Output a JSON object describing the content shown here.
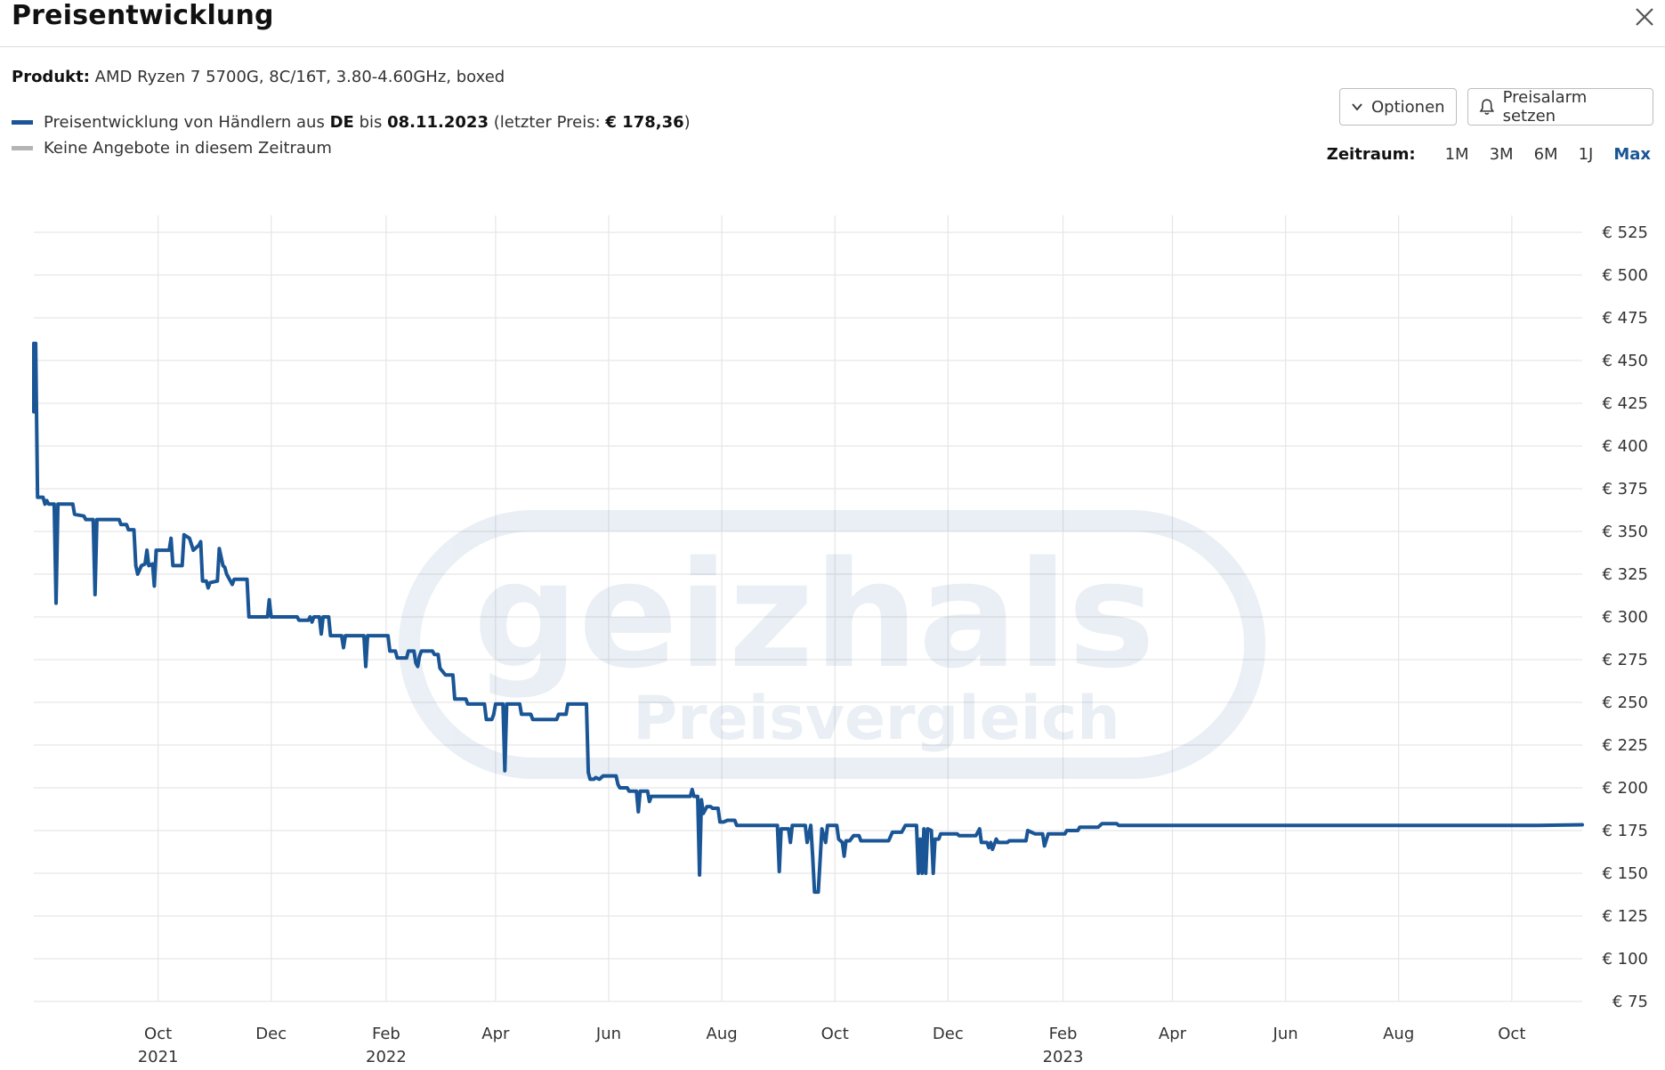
{
  "header": {
    "title": "Preisentwicklung"
  },
  "product": {
    "label": "Produkt:",
    "name": "AMD Ryzen 7 5700G, 8C/16T, 3.80-4.60GHz, boxed"
  },
  "legend": {
    "series_prefix": "Preisentwicklung von Händlern aus",
    "country": "DE",
    "bis": "bis",
    "date": "08.11.2023",
    "last_price_prefix": "(letzter Preis:",
    "last_price": "€ 178,36",
    "last_price_suffix": ")",
    "no_offers": "Keine Angebote in diesem Zeitraum",
    "series_color": "#1a5595",
    "no_offers_color": "#b4b4b4"
  },
  "buttons": {
    "options": "Optionen",
    "alarm": "Preisalarm setzen"
  },
  "zeitraum": {
    "label": "Zeitraum:",
    "options": [
      "1M",
      "3M",
      "6M",
      "1J",
      "Max"
    ],
    "active": "Max"
  },
  "watermark": {
    "main": "geizhals",
    "sub": "Preisvergleich"
  },
  "icons": {
    "close": "close-icon",
    "options": "chevron-down-icon",
    "alarm": "bell-icon"
  },
  "chart_data": {
    "type": "line",
    "xlabel": "",
    "ylabel": "",
    "ylim": [
      75,
      525
    ],
    "xlim": [
      "2021-07-26",
      "2023-11-08"
    ],
    "y_ticks": [
      75,
      100,
      125,
      150,
      175,
      200,
      225,
      250,
      275,
      300,
      325,
      350,
      375,
      400,
      425,
      450,
      475,
      500,
      525
    ],
    "y_tick_prefix": "€ ",
    "x_ticks": [
      {
        "date": "2021-10-01",
        "label": "Oct",
        "year": "2021"
      },
      {
        "date": "2021-12-01",
        "label": "Dec",
        "year": ""
      },
      {
        "date": "2022-02-01",
        "label": "Feb",
        "year": "2022"
      },
      {
        "date": "2022-04-01",
        "label": "Apr",
        "year": ""
      },
      {
        "date": "2022-06-01",
        "label": "Jun",
        "year": ""
      },
      {
        "date": "2022-08-01",
        "label": "Aug",
        "year": ""
      },
      {
        "date": "2022-10-01",
        "label": "Oct",
        "year": ""
      },
      {
        "date": "2022-12-01",
        "label": "Dec",
        "year": ""
      },
      {
        "date": "2023-02-01",
        "label": "Feb",
        "year": "2023"
      },
      {
        "date": "2023-04-01",
        "label": "Apr",
        "year": ""
      },
      {
        "date": "2023-06-01",
        "label": "Jun",
        "year": ""
      },
      {
        "date": "2023-08-01",
        "label": "Aug",
        "year": ""
      },
      {
        "date": "2023-10-01",
        "label": "Oct",
        "year": ""
      }
    ],
    "grid": true,
    "series": [
      {
        "color": "#1a5595",
        "points": [
          [
            "2021-07-26",
            460
          ],
          [
            "2021-07-26",
            420
          ],
          [
            "2021-07-27",
            460
          ],
          [
            "2021-07-28",
            370
          ],
          [
            "2021-07-31",
            370
          ],
          [
            "2021-08-01",
            366
          ],
          [
            "2021-08-02",
            368
          ],
          [
            "2021-08-03",
            366
          ],
          [
            "2021-08-06",
            366
          ],
          [
            "2021-08-07",
            308
          ],
          [
            "2021-08-08",
            366
          ],
          [
            "2021-08-16",
            366
          ],
          [
            "2021-08-17",
            360
          ],
          [
            "2021-08-22",
            359
          ],
          [
            "2021-08-23",
            357
          ],
          [
            "2021-08-27",
            357
          ],
          [
            "2021-08-28",
            313
          ],
          [
            "2021-08-29",
            357
          ],
          [
            "2021-09-10",
            357
          ],
          [
            "2021-09-11",
            354
          ],
          [
            "2021-09-14",
            354
          ],
          [
            "2021-09-15",
            351
          ],
          [
            "2021-09-18",
            351
          ],
          [
            "2021-09-19",
            330
          ],
          [
            "2021-09-20",
            325
          ],
          [
            "2021-09-22",
            330
          ],
          [
            "2021-09-24",
            331
          ],
          [
            "2021-09-25",
            339
          ],
          [
            "2021-09-26",
            330
          ],
          [
            "2021-09-28",
            331
          ],
          [
            "2021-09-29",
            318
          ],
          [
            "2021-09-30",
            339
          ],
          [
            "2021-10-07",
            339
          ],
          [
            "2021-10-08",
            346
          ],
          [
            "2021-10-09",
            330
          ],
          [
            "2021-10-14",
            330
          ],
          [
            "2021-10-15",
            348
          ],
          [
            "2021-10-18",
            346
          ],
          [
            "2021-10-20",
            339
          ],
          [
            "2021-10-23",
            342
          ],
          [
            "2021-10-24",
            344
          ],
          [
            "2021-10-25",
            321
          ],
          [
            "2021-10-27",
            321
          ],
          [
            "2021-10-28",
            317
          ],
          [
            "2021-10-29",
            320
          ],
          [
            "2021-11-02",
            321
          ],
          [
            "2021-11-03",
            340
          ],
          [
            "2021-11-05",
            330
          ],
          [
            "2021-11-06",
            329
          ],
          [
            "2021-11-07",
            325
          ],
          [
            "2021-11-09",
            321
          ],
          [
            "2021-11-10",
            319
          ],
          [
            "2021-11-11",
            322
          ],
          [
            "2021-11-18",
            322
          ],
          [
            "2021-11-19",
            300
          ],
          [
            "2021-11-29",
            300
          ],
          [
            "2021-11-30",
            310
          ],
          [
            "2021-12-01",
            300
          ],
          [
            "2021-12-15",
            300
          ],
          [
            "2021-12-16",
            298
          ],
          [
            "2021-12-21",
            298
          ],
          [
            "2021-12-22",
            300
          ],
          [
            "2021-12-23",
            297
          ],
          [
            "2021-12-24",
            300
          ],
          [
            "2021-12-27",
            300
          ],
          [
            "2021-12-28",
            290
          ],
          [
            "2021-12-29",
            300
          ],
          [
            "2022-01-01",
            300
          ],
          [
            "2022-01-02",
            289
          ],
          [
            "2022-01-08",
            289
          ],
          [
            "2022-01-09",
            282
          ],
          [
            "2022-01-10",
            289
          ],
          [
            "2022-01-20",
            289
          ],
          [
            "2022-01-21",
            271
          ],
          [
            "2022-01-22",
            289
          ],
          [
            "2022-02-02",
            289
          ],
          [
            "2022-02-03",
            280
          ],
          [
            "2022-02-06",
            280
          ],
          [
            "2022-02-07",
            276
          ],
          [
            "2022-02-12",
            276
          ],
          [
            "2022-02-13",
            280
          ],
          [
            "2022-02-16",
            280
          ],
          [
            "2022-02-17",
            273
          ],
          [
            "2022-02-18",
            271
          ],
          [
            "2022-02-19",
            277
          ],
          [
            "2022-02-20",
            280
          ],
          [
            "2022-02-26",
            280
          ],
          [
            "2022-02-27",
            278
          ],
          [
            "2022-03-01",
            278
          ],
          [
            "2022-03-02",
            270
          ],
          [
            "2022-03-05",
            266
          ],
          [
            "2022-03-09",
            266
          ],
          [
            "2022-03-10",
            252
          ],
          [
            "2022-03-15",
            252
          ],
          [
            "2022-03-16",
            252
          ],
          [
            "2022-03-17",
            249
          ],
          [
            "2022-03-20",
            249
          ],
          [
            "2022-03-21",
            249
          ],
          [
            "2022-03-26",
            249
          ],
          [
            "2022-03-27",
            240
          ],
          [
            "2022-03-30",
            240
          ],
          [
            "2022-03-31",
            243
          ],
          [
            "2022-04-01",
            249
          ],
          [
            "2022-04-05",
            249
          ],
          [
            "2022-04-06",
            210
          ],
          [
            "2022-04-07",
            249
          ],
          [
            "2022-04-14",
            249
          ],
          [
            "2022-04-15",
            243
          ],
          [
            "2022-04-20",
            243
          ],
          [
            "2022-04-21",
            240
          ],
          [
            "2022-05-04",
            240
          ],
          [
            "2022-05-05",
            243
          ],
          [
            "2022-05-09",
            243
          ],
          [
            "2022-05-10",
            249
          ],
          [
            "2022-05-20",
            249
          ],
          [
            "2022-05-21",
            209
          ],
          [
            "2022-05-22",
            205
          ],
          [
            "2022-05-24",
            205
          ],
          [
            "2022-05-25",
            206
          ],
          [
            "2022-05-27",
            205
          ],
          [
            "2022-05-29",
            207
          ],
          [
            "2022-06-01",
            207
          ],
          [
            "2022-06-05",
            207
          ],
          [
            "2022-06-06",
            202
          ],
          [
            "2022-06-07",
            200
          ],
          [
            "2022-06-11",
            200
          ],
          [
            "2022-06-12",
            198
          ],
          [
            "2022-06-16",
            198
          ],
          [
            "2022-06-17",
            186
          ],
          [
            "2022-06-18",
            198
          ],
          [
            "2022-06-22",
            198
          ],
          [
            "2022-06-23",
            192
          ],
          [
            "2022-06-24",
            195
          ],
          [
            "2022-06-30",
            195
          ],
          [
            "2022-07-04",
            195
          ],
          [
            "2022-07-15",
            195
          ],
          [
            "2022-07-16",
            199
          ],
          [
            "2022-07-17",
            195
          ],
          [
            "2022-07-19",
            195
          ],
          [
            "2022-07-20",
            149
          ],
          [
            "2022-07-21",
            193
          ],
          [
            "2022-07-22",
            185
          ],
          [
            "2022-07-24",
            189
          ],
          [
            "2022-07-26",
            189
          ],
          [
            "2022-07-27",
            188
          ],
          [
            "2022-07-30",
            188
          ],
          [
            "2022-07-31",
            180
          ],
          [
            "2022-08-02",
            180
          ],
          [
            "2022-08-04",
            181
          ],
          [
            "2022-08-08",
            181
          ],
          [
            "2022-08-09",
            178
          ],
          [
            "2022-08-31",
            178
          ],
          [
            "2022-09-01",
            151
          ],
          [
            "2022-09-02",
            176
          ],
          [
            "2022-09-06",
            176
          ],
          [
            "2022-09-07",
            168
          ],
          [
            "2022-09-08",
            178
          ],
          [
            "2022-09-15",
            178
          ],
          [
            "2022-09-16",
            168
          ],
          [
            "2022-09-18",
            178
          ],
          [
            "2022-09-19",
            160
          ],
          [
            "2022-09-20",
            139
          ],
          [
            "2022-09-22",
            139
          ],
          [
            "2022-09-24",
            176
          ],
          [
            "2022-09-26",
            168
          ],
          [
            "2022-09-27",
            178
          ],
          [
            "2022-10-02",
            178
          ],
          [
            "2022-10-03",
            170
          ],
          [
            "2022-10-05",
            168
          ],
          [
            "2022-10-06",
            160
          ],
          [
            "2022-10-07",
            169
          ],
          [
            "2022-10-09",
            169
          ],
          [
            "2022-10-11",
            172
          ],
          [
            "2022-10-14",
            172
          ],
          [
            "2022-10-15",
            169
          ],
          [
            "2022-10-30",
            169
          ],
          [
            "2022-11-01",
            174
          ],
          [
            "2022-11-06",
            174
          ],
          [
            "2022-11-08",
            178
          ],
          [
            "2022-11-14",
            178
          ],
          [
            "2022-11-15",
            150
          ],
          [
            "2022-11-16",
            170
          ],
          [
            "2022-11-17",
            150
          ],
          [
            "2022-11-18",
            176
          ],
          [
            "2022-11-19",
            150
          ],
          [
            "2022-11-20",
            176
          ],
          [
            "2022-11-22",
            175
          ],
          [
            "2022-11-23",
            150
          ],
          [
            "2022-11-24",
            170
          ],
          [
            "2022-11-26",
            170
          ],
          [
            "2022-11-27",
            173
          ],
          [
            "2022-12-06",
            173
          ],
          [
            "2022-12-07",
            172
          ],
          [
            "2022-12-16",
            172
          ],
          [
            "2022-12-18",
            176
          ],
          [
            "2022-12-19",
            168
          ],
          [
            "2022-12-22",
            168
          ],
          [
            "2022-12-23",
            165
          ],
          [
            "2022-12-24",
            168
          ],
          [
            "2022-12-25",
            164
          ],
          [
            "2022-12-27",
            170
          ],
          [
            "2022-12-28",
            168
          ],
          [
            "2023-01-02",
            168
          ],
          [
            "2023-01-03",
            169
          ],
          [
            "2023-01-12",
            169
          ],
          [
            "2023-01-13",
            175
          ],
          [
            "2023-01-17",
            173
          ],
          [
            "2023-01-21",
            173
          ],
          [
            "2023-01-22",
            166
          ],
          [
            "2023-01-24",
            173
          ],
          [
            "2023-02-02",
            173
          ],
          [
            "2023-02-03",
            175
          ],
          [
            "2023-02-09",
            175
          ],
          [
            "2023-02-10",
            177
          ],
          [
            "2023-02-20",
            177
          ],
          [
            "2023-02-22",
            179
          ],
          [
            "2023-03-02",
            179
          ],
          [
            "2023-03-03",
            178
          ],
          [
            "2023-03-14",
            178
          ],
          [
            "2023-03-16",
            178
          ],
          [
            "2023-03-26",
            178
          ],
          [
            "2023-05-10",
            178
          ],
          [
            "2023-05-15",
            178
          ],
          [
            "2023-06-05",
            178
          ],
          [
            "2023-07-22",
            178
          ],
          [
            "2023-08-10",
            178
          ],
          [
            "2023-09-25",
            178
          ],
          [
            "2023-10-15",
            178
          ],
          [
            "2023-11-08",
            178.36
          ]
        ]
      }
    ]
  }
}
